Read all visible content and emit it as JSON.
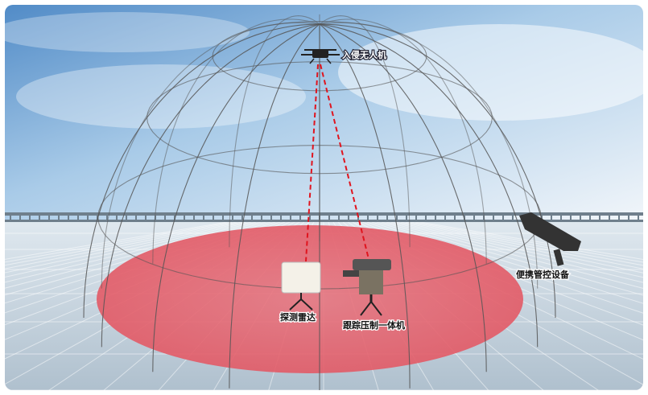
{
  "labels": {
    "drone": "入侵无人机",
    "radar": "探测雷达",
    "tracker": "跟踪压制一体机",
    "handheld": "便携管控设备"
  }
}
